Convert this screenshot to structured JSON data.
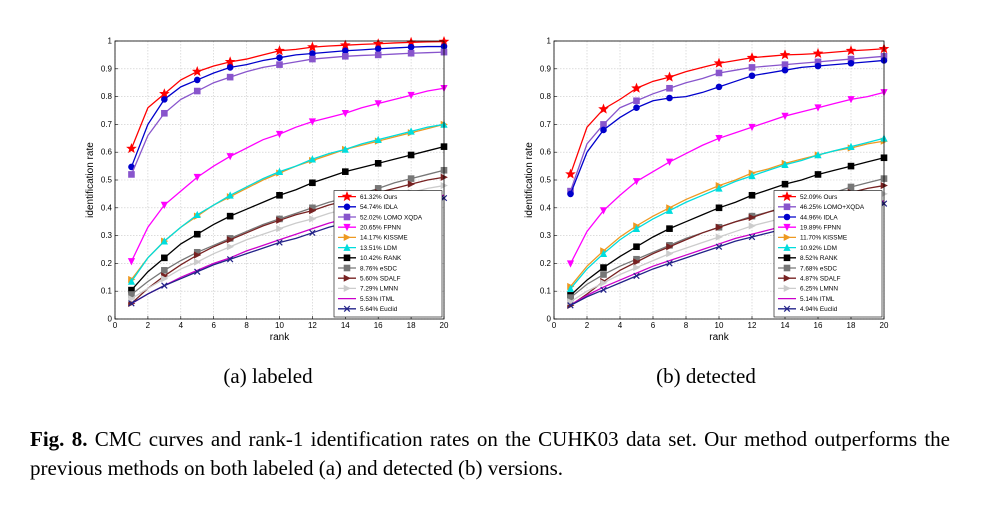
{
  "chart_data": [
    {
      "type": "line",
      "title": "",
      "subcaption": "(a) labeled",
      "xlabel": "rank",
      "ylabel": "identification rate",
      "xlim": [
        0,
        20
      ],
      "ylim": [
        0,
        1
      ],
      "xticks": [
        0,
        2,
        4,
        6,
        8,
        10,
        12,
        14,
        16,
        18,
        20
      ],
      "yticks": [
        0,
        0.1,
        0.2,
        0.3,
        0.4,
        0.5,
        0.6,
        0.7,
        0.8,
        0.9,
        1
      ],
      "ytick_labels": [
        "0",
        "0.1",
        "0.2",
        "0.3",
        "0.4",
        "0.5",
        "0.6",
        "0.7",
        "0.8",
        "0.9",
        "1"
      ],
      "grid": true,
      "legend_position": "bottom-right",
      "x": [
        1,
        2,
        3,
        4,
        5,
        6,
        7,
        8,
        9,
        10,
        11,
        12,
        13,
        14,
        15,
        16,
        17,
        18,
        19,
        20
      ],
      "series": [
        {
          "name": "61.32% Ours",
          "color": "#ff0000",
          "marker": "star",
          "values": [
            0.613,
            0.76,
            0.81,
            0.86,
            0.89,
            0.91,
            0.925,
            0.935,
            0.95,
            0.965,
            0.97,
            0.978,
            0.982,
            0.985,
            0.988,
            0.99,
            0.993,
            0.995,
            0.997,
            0.998
          ]
        },
        {
          "name": "54.74% IDLA",
          "color": "#0000cc",
          "marker": "circle",
          "values": [
            0.547,
            0.7,
            0.79,
            0.835,
            0.86,
            0.885,
            0.905,
            0.915,
            0.93,
            0.94,
            0.95,
            0.955,
            0.96,
            0.965,
            0.968,
            0.972,
            0.975,
            0.978,
            0.98,
            0.98
          ]
        },
        {
          "name": "52.02% LOMO XQDA",
          "color": "#8855cc",
          "marker": "square",
          "values": [
            0.52,
            0.66,
            0.74,
            0.79,
            0.82,
            0.85,
            0.87,
            0.89,
            0.905,
            0.915,
            0.925,
            0.935,
            0.94,
            0.945,
            0.948,
            0.95,
            0.953,
            0.956,
            0.958,
            0.96
          ]
        },
        {
          "name": "20.65% FPNN",
          "color": "#ff00ff",
          "marker": "triangle-down",
          "values": [
            0.207,
            0.33,
            0.41,
            0.46,
            0.51,
            0.55,
            0.585,
            0.615,
            0.645,
            0.665,
            0.69,
            0.71,
            0.725,
            0.74,
            0.76,
            0.775,
            0.79,
            0.805,
            0.82,
            0.83
          ]
        },
        {
          "name": "14.17% KISSME",
          "color": "#ee9922",
          "marker": "triangle-right",
          "values": [
            0.142,
            0.22,
            0.28,
            0.33,
            0.37,
            0.41,
            0.44,
            0.47,
            0.5,
            0.525,
            0.55,
            0.57,
            0.59,
            0.61,
            0.625,
            0.64,
            0.655,
            0.67,
            0.685,
            0.7
          ]
        },
        {
          "name": "13.51% LDM",
          "color": "#00dddd",
          "marker": "triangle-up",
          "values": [
            0.135,
            0.22,
            0.28,
            0.33,
            0.375,
            0.41,
            0.445,
            0.475,
            0.505,
            0.53,
            0.55,
            0.575,
            0.595,
            0.61,
            0.63,
            0.645,
            0.66,
            0.675,
            0.69,
            0.7
          ]
        },
        {
          "name": "10.42% RANK",
          "color": "#000000",
          "marker": "square",
          "values": [
            0.104,
            0.17,
            0.22,
            0.27,
            0.305,
            0.34,
            0.37,
            0.395,
            0.42,
            0.445,
            0.465,
            0.49,
            0.51,
            0.53,
            0.545,
            0.56,
            0.575,
            0.59,
            0.605,
            0.62
          ]
        },
        {
          "name": "8.76% eSDC",
          "color": "#777777",
          "marker": "square",
          "values": [
            0.088,
            0.135,
            0.175,
            0.21,
            0.24,
            0.265,
            0.29,
            0.315,
            0.34,
            0.36,
            0.38,
            0.4,
            0.42,
            0.435,
            0.45,
            0.47,
            0.49,
            0.505,
            0.52,
            0.535
          ]
        },
        {
          "name": "5.60% SDALF",
          "color": "#772222",
          "marker": "triangle-right",
          "values": [
            0.056,
            0.11,
            0.155,
            0.195,
            0.23,
            0.26,
            0.285,
            0.31,
            0.335,
            0.355,
            0.375,
            0.39,
            0.41,
            0.425,
            0.44,
            0.455,
            0.47,
            0.485,
            0.5,
            0.51
          ]
        },
        {
          "name": "7.29% LMNN",
          "color": "#cccccc",
          "marker": "triangle-right",
          "values": [
            0.073,
            0.11,
            0.145,
            0.18,
            0.205,
            0.235,
            0.26,
            0.285,
            0.305,
            0.325,
            0.345,
            0.36,
            0.38,
            0.395,
            0.41,
            0.425,
            0.44,
            0.455,
            0.47,
            0.48
          ]
        },
        {
          "name": "5.53% ITML",
          "color": "#cc00cc",
          "marker": "none",
          "values": [
            0.055,
            0.09,
            0.12,
            0.15,
            0.175,
            0.2,
            0.22,
            0.245,
            0.265,
            0.285,
            0.305,
            0.325,
            0.345,
            0.36,
            0.375,
            0.39,
            0.405,
            0.42,
            0.435,
            0.445
          ]
        },
        {
          "name": "5.64% Euclid",
          "color": "#222288",
          "marker": "x",
          "values": [
            0.056,
            0.09,
            0.12,
            0.145,
            0.17,
            0.195,
            0.215,
            0.235,
            0.255,
            0.275,
            0.29,
            0.31,
            0.33,
            0.345,
            0.36,
            0.375,
            0.39,
            0.405,
            0.42,
            0.435
          ]
        }
      ]
    },
    {
      "type": "line",
      "title": "",
      "subcaption": "(b) detected",
      "xlabel": "rank",
      "ylabel": "identification rate",
      "xlim": [
        0,
        20
      ],
      "ylim": [
        0,
        1
      ],
      "xticks": [
        0,
        2,
        4,
        6,
        8,
        10,
        12,
        14,
        16,
        18,
        20
      ],
      "yticks": [
        0,
        0.1,
        0.2,
        0.3,
        0.4,
        0.5,
        0.6,
        0.7,
        0.8,
        0.9,
        1
      ],
      "ytick_labels": [
        "0",
        "0.1",
        "0.2",
        "0.3",
        "0.4",
        "0.5",
        "0.6",
        "0.7",
        "0.8",
        "0.9",
        "1"
      ],
      "grid": true,
      "legend_position": "bottom-right",
      "x": [
        1,
        2,
        3,
        4,
        5,
        6,
        7,
        8,
        9,
        10,
        11,
        12,
        13,
        14,
        15,
        16,
        17,
        18,
        19,
        20
      ],
      "series": [
        {
          "name": "52.09% Ours",
          "color": "#ff0000",
          "marker": "star",
          "values": [
            0.521,
            0.69,
            0.755,
            0.79,
            0.83,
            0.855,
            0.87,
            0.89,
            0.905,
            0.92,
            0.93,
            0.94,
            0.945,
            0.95,
            0.952,
            0.955,
            0.96,
            0.965,
            0.968,
            0.972
          ]
        },
        {
          "name": "46.25% LOMO+XQDA",
          "color": "#8855cc",
          "marker": "square",
          "values": [
            0.46,
            0.63,
            0.7,
            0.76,
            0.785,
            0.81,
            0.83,
            0.85,
            0.865,
            0.885,
            0.895,
            0.905,
            0.91,
            0.915,
            0.92,
            0.925,
            0.93,
            0.935,
            0.94,
            0.945
          ]
        },
        {
          "name": "44.96% IDLA",
          "color": "#0000cc",
          "marker": "circle",
          "values": [
            0.45,
            0.6,
            0.68,
            0.725,
            0.76,
            0.785,
            0.795,
            0.8,
            0.815,
            0.835,
            0.855,
            0.875,
            0.885,
            0.895,
            0.905,
            0.91,
            0.915,
            0.92,
            0.925,
            0.93
          ]
        },
        {
          "name": "19.89% FPNN",
          "color": "#ff00ff",
          "marker": "triangle-down",
          "values": [
            0.199,
            0.315,
            0.39,
            0.445,
            0.495,
            0.53,
            0.565,
            0.595,
            0.625,
            0.65,
            0.67,
            0.69,
            0.71,
            0.73,
            0.745,
            0.76,
            0.775,
            0.79,
            0.8,
            0.815
          ]
        },
        {
          "name": "11.70% KISSME",
          "color": "#ee9922",
          "marker": "triangle-right",
          "values": [
            0.117,
            0.19,
            0.245,
            0.295,
            0.335,
            0.37,
            0.4,
            0.43,
            0.455,
            0.48,
            0.5,
            0.525,
            0.54,
            0.56,
            0.575,
            0.59,
            0.605,
            0.615,
            0.63,
            0.64
          ]
        },
        {
          "name": "10.92% LDM",
          "color": "#00dddd",
          "marker": "triangle-up",
          "values": [
            0.109,
            0.18,
            0.235,
            0.285,
            0.325,
            0.36,
            0.39,
            0.42,
            0.445,
            0.47,
            0.495,
            0.515,
            0.535,
            0.555,
            0.57,
            0.59,
            0.605,
            0.62,
            0.635,
            0.65
          ]
        },
        {
          "name": "8.52% RANK",
          "color": "#000000",
          "marker": "square",
          "values": [
            0.085,
            0.14,
            0.185,
            0.225,
            0.26,
            0.295,
            0.325,
            0.35,
            0.375,
            0.4,
            0.42,
            0.445,
            0.465,
            0.485,
            0.5,
            0.52,
            0.535,
            0.55,
            0.565,
            0.58
          ]
        },
        {
          "name": "7.68% eSDC",
          "color": "#777777",
          "marker": "square",
          "values": [
            0.077,
            0.125,
            0.16,
            0.19,
            0.215,
            0.24,
            0.265,
            0.29,
            0.31,
            0.33,
            0.35,
            0.37,
            0.385,
            0.405,
            0.42,
            0.44,
            0.455,
            0.475,
            0.49,
            0.505
          ]
        },
        {
          "name": "4.87% SDALF",
          "color": "#772222",
          "marker": "triangle-right",
          "values": [
            0.049,
            0.09,
            0.135,
            0.175,
            0.205,
            0.235,
            0.26,
            0.285,
            0.31,
            0.33,
            0.35,
            0.365,
            0.385,
            0.4,
            0.415,
            0.43,
            0.445,
            0.455,
            0.47,
            0.48
          ]
        },
        {
          "name": "6.25% LMNN",
          "color": "#cccccc",
          "marker": "triangle-right",
          "values": [
            0.062,
            0.1,
            0.13,
            0.16,
            0.185,
            0.21,
            0.235,
            0.255,
            0.275,
            0.295,
            0.315,
            0.335,
            0.35,
            0.365,
            0.38,
            0.395,
            0.41,
            0.42,
            0.435,
            0.45
          ]
        },
        {
          "name": "5.14% ITML",
          "color": "#cc00cc",
          "marker": "none",
          "values": [
            0.051,
            0.085,
            0.115,
            0.14,
            0.165,
            0.19,
            0.21,
            0.23,
            0.25,
            0.27,
            0.29,
            0.305,
            0.32,
            0.335,
            0.35,
            0.365,
            0.38,
            0.395,
            0.41,
            0.425
          ]
        },
        {
          "name": "4.94% Euclid",
          "color": "#222288",
          "marker": "x",
          "values": [
            0.049,
            0.08,
            0.105,
            0.13,
            0.155,
            0.18,
            0.2,
            0.22,
            0.24,
            0.26,
            0.28,
            0.295,
            0.31,
            0.325,
            0.34,
            0.355,
            0.37,
            0.385,
            0.4,
            0.415
          ]
        }
      ]
    }
  ],
  "caption": {
    "label": "Fig. 8.",
    "text": " CMC curves and rank-1 identification rates on the CUHK03 data set. Our method outperforms the previous methods on both labeled (a) and detected (b) versions."
  }
}
